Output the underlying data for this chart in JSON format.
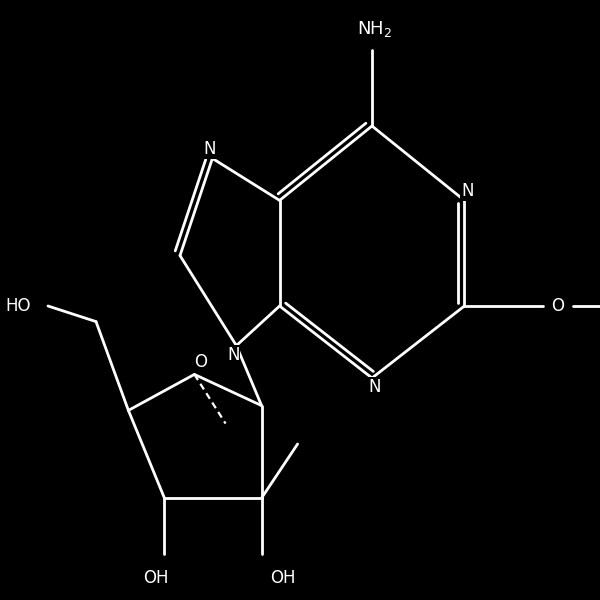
{
  "bg": "#000000",
  "lc": "#ffffff",
  "lw": 2.0,
  "fs": 12,
  "figsize": [
    6.0,
    6.0
  ],
  "dpi": 100,
  "xlim": [
    0,
    10
  ],
  "ylim": [
    0,
    10
  ]
}
